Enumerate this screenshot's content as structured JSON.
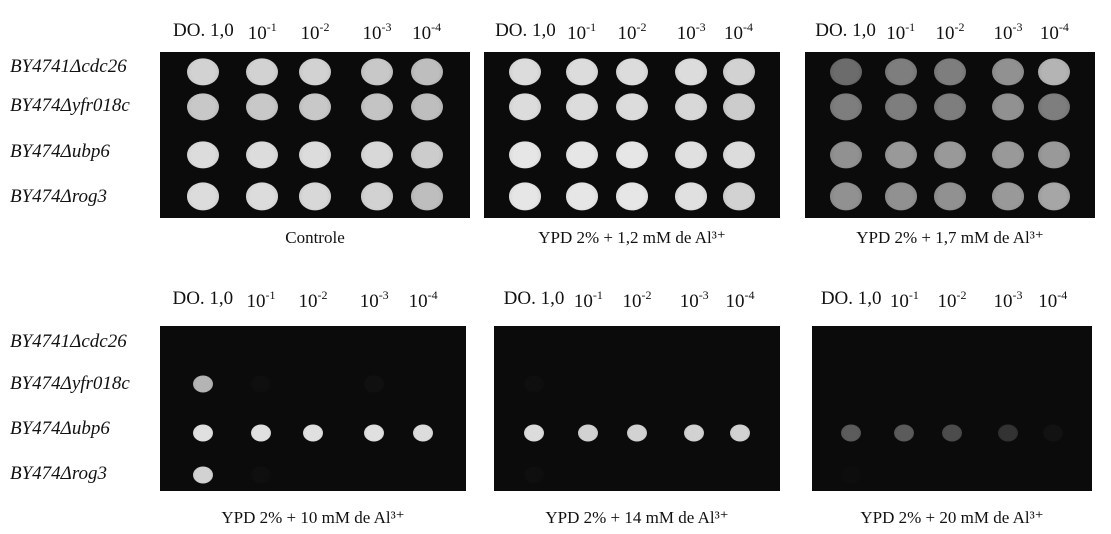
{
  "dilutions": [
    "DO. 1,0",
    {
      "base": "10",
      "exponent": "-1"
    },
    {
      "base": "10",
      "exponent": "-2"
    },
    {
      "base": "10",
      "exponent": "-3"
    },
    {
      "base": "10",
      "exponent": "-4"
    }
  ],
  "strains": [
    "BY4741Δcdc26",
    "BY474Δyfr018c",
    "BY474Δubp6",
    "BY474Δrog3"
  ],
  "panels": [
    {
      "caption": "Controle"
    },
    {
      "caption": "YPD 2% + 1,2 mM de Al³⁺"
    },
    {
      "caption": "YPD 2% + 1,7 mM de Al³⁺"
    },
    {
      "caption": "YPD 2% + 10 mM de Al³⁺"
    },
    {
      "caption": "YPD 2% + 14 mM de Al³⁺"
    },
    {
      "caption": "YPD 2% + 20 mM de Al³⁺"
    }
  ]
}
